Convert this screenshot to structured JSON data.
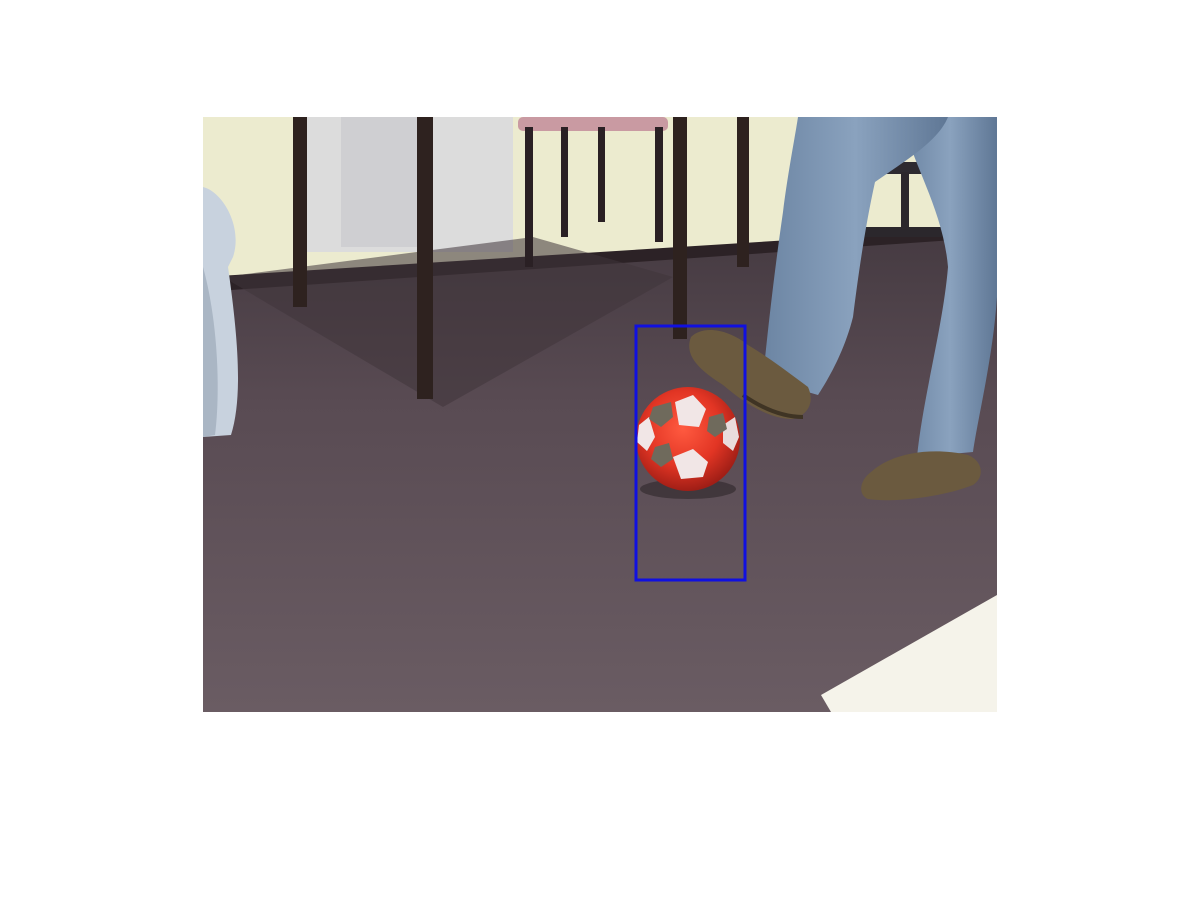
{
  "figure": {
    "background": "#ffffff"
  },
  "photo": {
    "subject_tags": [
      "soccer-ball",
      "carpet-floor",
      "desk",
      "chair",
      "person-legs",
      "jeans",
      "shoes",
      "wall"
    ]
  },
  "annotation": {
    "shape": "rectangle",
    "target": "soccer-ball",
    "color": "#1010e0"
  },
  "colors": {
    "wall": "#ecebcf",
    "carpet": "#5e5158",
    "ball_red": "#e23524",
    "ball_patch_white": "#f1e6e6",
    "ball_patch_gray": "#6f6a5c",
    "jeans": "#7f97b3",
    "shoe": "#6b5a3f",
    "desk_leg": "#2e221f",
    "chair_seat": "#c99aa2"
  }
}
